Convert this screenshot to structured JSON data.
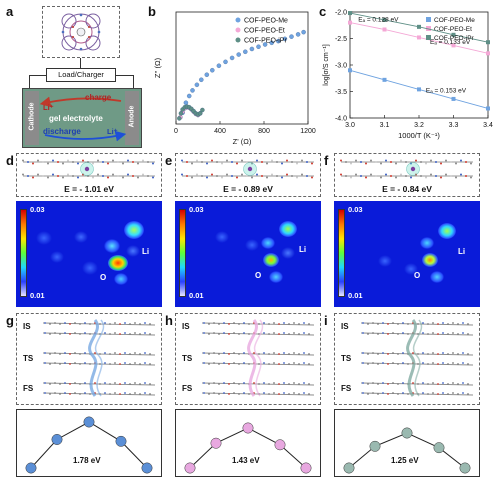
{
  "panels": {
    "a": "a",
    "b": "b",
    "c": "c",
    "d": "d",
    "e": "e",
    "f": "f",
    "g": "g",
    "h": "h",
    "i": "i"
  },
  "schematic": {
    "load_charger": "Load/Charger",
    "cathode": "Cathode",
    "anode": "Anode",
    "li_plus_1": "Li⁺",
    "li_plus_2": "Li⁺",
    "charge": "charge",
    "discharge": "discharge",
    "gel_electrolyte": "gel electrolyte"
  },
  "energies": {
    "d": "E = - 1.01 eV",
    "e": "E = - 0.89 eV",
    "f": "E = - 0.84 eV"
  },
  "heatmaps": {
    "cbar_max": "0.03",
    "cbar_min": "0.01",
    "li_label": "Li",
    "o_label": "O"
  },
  "path_labels": {
    "is": "IS",
    "ts": "TS",
    "fs": "FS"
  },
  "barriers": {
    "g": "1.78 eV",
    "h": "1.43 eV",
    "i": "1.25 eV"
  },
  "colors": {
    "me": "#6fa3e0",
    "et": "#f4a8d6",
    "ipr": "#5e8f86",
    "g_nodes": "#5b8fd6",
    "h_nodes": "#e8a8e0",
    "i_nodes": "#9ab9b0"
  },
  "chart_data": [
    {
      "type": "scatter",
      "xlabel": "Z' (Ω)",
      "ylabel": "Z'' (Ω)",
      "xlim": [
        0,
        1200
      ],
      "ylim": [
        0,
        1000
      ],
      "xticks": [
        "0",
        "400",
        "800",
        "1200"
      ],
      "legend_position": "top-right",
      "series": [
        {
          "name": "COF-PEO-Me",
          "x": [
            60,
            90,
            120,
            150,
            190,
            230,
            280,
            330,
            390,
            450,
            510,
            570,
            630,
            690,
            750,
            810,
            870,
            930,
            990,
            1050,
            1110,
            1160
          ],
          "y": [
            100,
            190,
            250,
            300,
            350,
            395,
            440,
            480,
            520,
            555,
            590,
            620,
            645,
            670,
            690,
            710,
            725,
            740,
            760,
            780,
            800,
            820
          ]
        },
        {
          "name": "COF-PEO-Et",
          "x": [
            40,
            60,
            80,
            100,
            120,
            140,
            160,
            180,
            200,
            220
          ],
          "y": [
            60,
            110,
            140,
            150,
            145,
            130,
            110,
            90,
            80,
            95
          ]
        },
        {
          "name": "COF-PEO-iPr",
          "x": [
            30,
            45,
            60,
            80,
            100,
            120,
            140,
            160,
            180,
            200,
            220,
            240
          ],
          "y": [
            50,
            95,
            130,
            150,
            155,
            150,
            135,
            115,
            95,
            85,
            95,
            125
          ]
        }
      ]
    },
    {
      "type": "line",
      "xlabel": "1000/T  (K⁻¹)",
      "ylabel": "log[σ/S cm⁻¹]",
      "xlim": [
        3.0,
        3.4
      ],
      "ylim": [
        -4.0,
        -2.0
      ],
      "xticks": [
        "3.0",
        "3.1",
        "3.2",
        "3.3",
        "3.4"
      ],
      "yticks": [
        "-2.0",
        "-2.5",
        "-3.0",
        "-3.5",
        "-4.0"
      ],
      "legend_position": "top-right",
      "series": [
        {
          "name": "COF-PEO-Me",
          "x": [
            3.0,
            3.1,
            3.2,
            3.3,
            3.4
          ],
          "y": [
            -3.1,
            -3.28,
            -3.46,
            -3.64,
            -3.82
          ],
          "annotation": "Eₐ = 0.153 eV"
        },
        {
          "name": "COF-PEO-Et",
          "x": [
            3.0,
            3.1,
            3.2,
            3.3,
            3.4
          ],
          "y": [
            -2.2,
            -2.33,
            -2.48,
            -2.63,
            -2.78
          ],
          "annotation": "Eₐ = 0.133 eV"
        },
        {
          "name": "COF-PEO-iPr",
          "x": [
            3.0,
            3.1,
            3.2,
            3.3,
            3.4
          ],
          "y": [
            -2.02,
            -2.15,
            -2.28,
            -2.43,
            -2.57
          ],
          "annotation": "Eₐ = 0.128 eV"
        }
      ]
    }
  ]
}
